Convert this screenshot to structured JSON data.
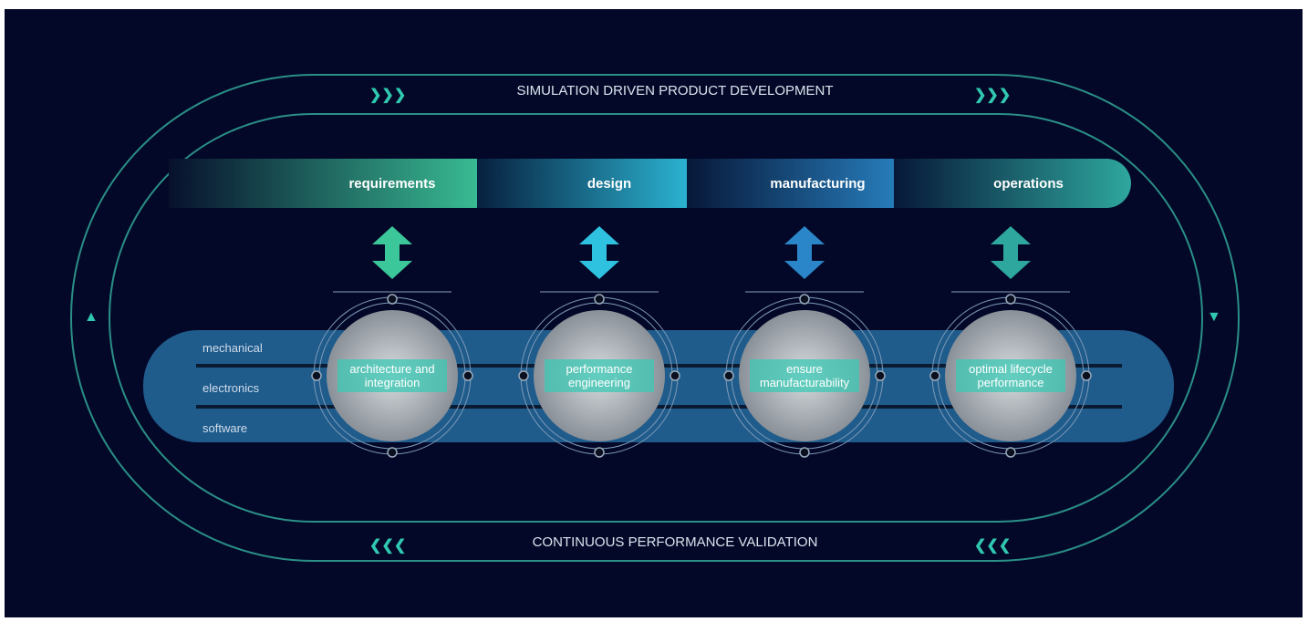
{
  "header": {
    "top_label": "SIMULATION DRIVEN PRODUCT DEVELOPMENT",
    "bottom_label": "CONTINUOUS PERFORMANCE VALIDATION"
  },
  "stages": [
    "requirements",
    "design",
    "manufacturing",
    "operations"
  ],
  "disciplines": [
    "mechanical",
    "electronics",
    "software"
  ],
  "circles": [
    "architecture and integration",
    "performance engineering",
    "ensure manufacturability",
    "optimal lifecycle performance"
  ]
}
